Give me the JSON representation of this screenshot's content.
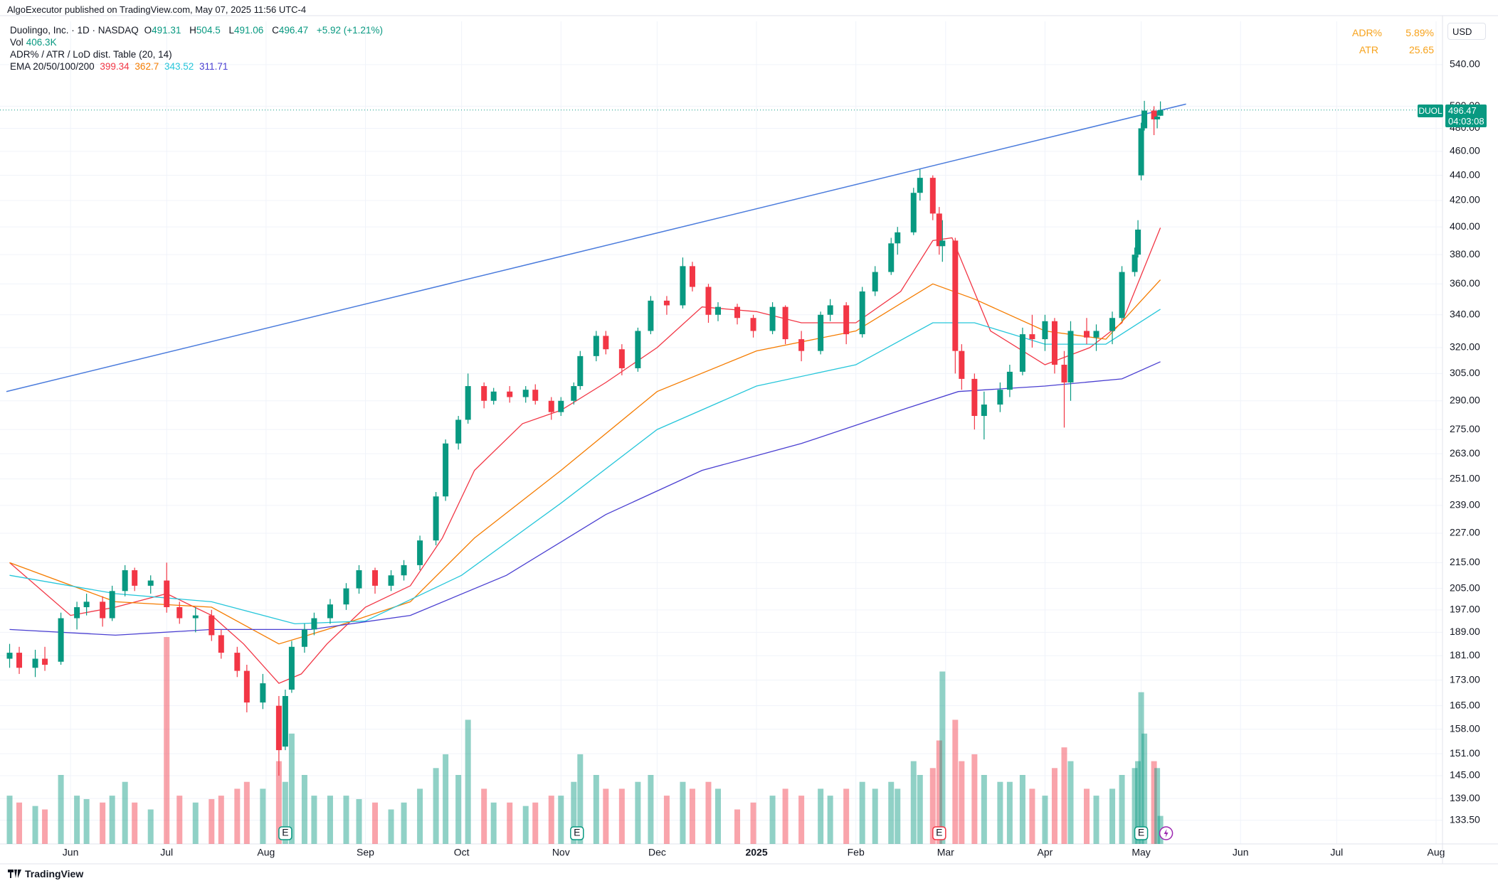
{
  "header": {
    "published": "AlgoExecutor published on TradingView.com, May 07, 2025 11:56 UTC-4",
    "symbol_line": "Duolingo, Inc. · 1D · NASDAQ",
    "ohlc_labels": [
      "O",
      "H",
      "L",
      "C"
    ],
    "change": "+5.92 (+1.21%)",
    "vol_label": "Vol",
    "vol_value": "406.3K",
    "table_label": "ADR% / ATR / LoD dist. Table (20, 14)",
    "ema_label": "EMA 20/50/100/200"
  },
  "adr_table": {
    "rows": [
      [
        "ADR%",
        "5.89%"
      ],
      [
        "ATR",
        "25.65"
      ]
    ]
  },
  "currency": "USD",
  "ticker": "DUOL",
  "countdown": "04:03:08",
  "footer": "TradingView",
  "chart_data": {
    "type": "candlestick",
    "log": true,
    "grid": true,
    "up_color": "#089981",
    "down_color": "#f23645",
    "xlim": [
      "2024-05-10",
      "2025-08-03"
    ],
    "xticks": [
      {
        "value": "2024-06-01",
        "label": "Jun"
      },
      {
        "value": "2024-07-01",
        "label": "Jul"
      },
      {
        "value": "2024-08-01",
        "label": "Aug"
      },
      {
        "value": "2024-09-01",
        "label": "Sep"
      },
      {
        "value": "2024-10-01",
        "label": "Oct"
      },
      {
        "value": "2024-11-01",
        "label": "Nov"
      },
      {
        "value": "2024-12-01",
        "label": "Dec"
      },
      {
        "value": "2025-01-01",
        "label": "2025"
      },
      {
        "value": "2025-02-01",
        "label": "Feb"
      },
      {
        "value": "2025-03-01",
        "label": "Mar"
      },
      {
        "value": "2025-04-01",
        "label": "Apr"
      },
      {
        "value": "2025-05-01",
        "label": "May"
      },
      {
        "value": "2025-06-01",
        "label": "Jun"
      },
      {
        "value": "2025-07-01",
        "label": "Jul"
      },
      {
        "value": "2025-08-01",
        "label": "Aug"
      }
    ],
    "ylim": [
      127.8,
      585
    ],
    "yticks": [
      {
        "value": 133.5,
        "label": "133.50"
      },
      {
        "value": 139,
        "label": "139.00"
      },
      {
        "value": 145,
        "label": "145.00"
      },
      {
        "value": 151,
        "label": "151.00"
      },
      {
        "value": 158,
        "label": "158.00"
      },
      {
        "value": 165,
        "label": "165.00"
      },
      {
        "value": 173,
        "label": "173.00"
      },
      {
        "value": 181,
        "label": "181.00"
      },
      {
        "value": 189,
        "label": "189.00"
      },
      {
        "value": 197,
        "label": "197.00"
      },
      {
        "value": 205,
        "label": "205.00"
      },
      {
        "value": 215,
        "label": "215.00"
      },
      {
        "value": 227,
        "label": "227.00"
      },
      {
        "value": 239,
        "label": "239.00"
      },
      {
        "value": 251,
        "label": "251.00"
      },
      {
        "value": 263,
        "label": "263.00"
      },
      {
        "value": 275,
        "label": "275.00"
      },
      {
        "value": 290,
        "label": "290.00"
      },
      {
        "value": 305,
        "label": "305.00"
      },
      {
        "value": 320,
        "label": "320.00"
      },
      {
        "value": 340,
        "label": "340.00"
      },
      {
        "value": 360,
        "label": "360.00"
      },
      {
        "value": 380,
        "label": "380.00"
      },
      {
        "value": 400,
        "label": "400.00"
      },
      {
        "value": 420,
        "label": "420.00"
      },
      {
        "value": 440,
        "label": "440.00"
      },
      {
        "value": 460,
        "label": "460.00"
      },
      {
        "value": 480,
        "label": "480.00"
      },
      {
        "value": 500,
        "label": "500.00"
      },
      {
        "value": 540,
        "label": "540.00"
      }
    ],
    "x": [
      "2024-05-13",
      "2024-05-16",
      "2024-05-21",
      "2024-05-24",
      "2024-05-29",
      "2024-06-03",
      "2024-06-06",
      "2024-06-11",
      "2024-06-14",
      "2024-06-18",
      "2024-06-21",
      "2024-06-26",
      "2024-07-01",
      "2024-07-05",
      "2024-07-10",
      "2024-07-15",
      "2024-07-18",
      "2024-07-23",
      "2024-07-26",
      "2024-07-31",
      "2024-08-05",
      "2024-08-07",
      "2024-08-09",
      "2024-08-13",
      "2024-08-16",
      "2024-08-21",
      "2024-08-26",
      "2024-08-30",
      "2024-09-04",
      "2024-09-09",
      "2024-09-13",
      "2024-09-18",
      "2024-09-23",
      "2024-09-26",
      "2024-09-30",
      "2024-10-03",
      "2024-10-08",
      "2024-10-11",
      "2024-10-16",
      "2024-10-21",
      "2024-10-24",
      "2024-10-29",
      "2024-11-01",
      "2024-11-05",
      "2024-11-07",
      "2024-11-12",
      "2024-11-15",
      "2024-11-20",
      "2024-11-25",
      "2024-11-29",
      "2024-12-04",
      "2024-12-09",
      "2024-12-12",
      "2024-12-17",
      "2024-12-20",
      "2024-12-26",
      "2024-12-31",
      "2025-01-06",
      "2025-01-10",
      "2025-01-15",
      "2025-01-21",
      "2025-01-24",
      "2025-01-29",
      "2025-02-03",
      "2025-02-07",
      "2025-02-12",
      "2025-02-14",
      "2025-02-19",
      "2025-02-21",
      "2025-02-25",
      "2025-02-27",
      "2025-02-28",
      "2025-03-04",
      "2025-03-06",
      "2025-03-10",
      "2025-03-13",
      "2025-03-18",
      "2025-03-21",
      "2025-03-25",
      "2025-03-28",
      "2025-04-01",
      "2025-04-04",
      "2025-04-07",
      "2025-04-09",
      "2025-04-14",
      "2025-04-17",
      "2025-04-22",
      "2025-04-25",
      "2025-04-29",
      "2025-04-30",
      "2025-05-01",
      "2025-05-02",
      "2025-05-05",
      "2025-05-06",
      "2025-05-07"
    ],
    "open": [
      180,
      182,
      177,
      180,
      179,
      194,
      198,
      200,
      194,
      204,
      212,
      206,
      208,
      198,
      194,
      195,
      188,
      182,
      176,
      166,
      165,
      153,
      170,
      184,
      190,
      194,
      199,
      205,
      212,
      206,
      210,
      214,
      224,
      243,
      268,
      280,
      298,
      290,
      295,
      292,
      296,
      290,
      284,
      290,
      298,
      315,
      327,
      319,
      308,
      330,
      349,
      346,
      372,
      358,
      340,
      345,
      338,
      330,
      345,
      325,
      318,
      340,
      346,
      328,
      355,
      368,
      388,
      396,
      426,
      438,
      410,
      386,
      390,
      318,
      302,
      282,
      288,
      296,
      306,
      328,
      325,
      336,
      310,
      300,
      330,
      326,
      330,
      338,
      368,
      380,
      440,
      480,
      496,
      488,
      491.31
    ],
    "high": [
      185,
      184,
      183,
      184,
      196,
      200,
      203,
      202,
      206,
      214,
      213,
      210,
      215,
      200,
      198,
      197,
      190,
      184,
      178,
      175,
      168,
      170,
      186,
      192,
      196,
      201,
      207,
      214,
      213,
      212,
      216,
      226,
      245,
      270,
      282,
      305,
      300,
      297,
      298,
      298,
      299,
      292,
      292,
      300,
      318,
      330,
      330,
      322,
      332,
      352,
      352,
      378,
      375,
      360,
      348,
      347,
      340,
      348,
      346,
      330,
      342,
      350,
      348,
      358,
      372,
      392,
      400,
      430,
      445,
      440,
      415,
      405,
      392,
      322,
      305,
      295,
      300,
      310,
      332,
      340,
      340,
      338,
      318,
      336,
      338,
      334,
      342,
      372,
      385,
      405,
      485,
      505,
      500,
      495,
      504.5
    ],
    "low": [
      177,
      175,
      174,
      176,
      178,
      190,
      195,
      191,
      193,
      202,
      204,
      203,
      196,
      192,
      189,
      186,
      180,
      174,
      163,
      164,
      145,
      152,
      169,
      182,
      188,
      192,
      197,
      203,
      203,
      204,
      208,
      212,
      222,
      241,
      265,
      278,
      286,
      288,
      289,
      289,
      288,
      280,
      282,
      288,
      296,
      312,
      316,
      304,
      306,
      328,
      340,
      344,
      355,
      335,
      336,
      334,
      326,
      328,
      322,
      312,
      316,
      336,
      322,
      326,
      352,
      366,
      380,
      394,
      420,
      405,
      380,
      375,
      305,
      296,
      275,
      270,
      284,
      292,
      304,
      320,
      318,
      305,
      276,
      290,
      322,
      318,
      322,
      336,
      365,
      378,
      436,
      478,
      474,
      480,
      491.06
    ],
    "close": [
      182,
      177,
      180,
      178,
      194,
      198,
      200,
      194,
      204,
      212,
      206,
      208,
      198,
      194,
      195,
      188,
      182,
      176,
      166,
      172,
      152,
      168,
      184,
      190,
      194,
      199,
      205,
      212,
      206,
      210,
      214,
      224,
      243,
      268,
      280,
      298,
      290,
      295,
      292,
      296,
      290,
      284,
      290,
      298,
      315,
      327,
      319,
      308,
      330,
      349,
      346,
      372,
      358,
      340,
      345,
      338,
      330,
      345,
      325,
      318,
      340,
      346,
      328,
      355,
      368,
      388,
      396,
      426,
      438,
      410,
      386,
      390,
      318,
      302,
      282,
      288,
      296,
      306,
      328,
      325,
      336,
      310,
      300,
      330,
      326,
      330,
      338,
      368,
      380,
      398,
      480,
      496,
      488,
      490.55,
      496.47
    ],
    "volume": [
      700000,
      600000,
      550000,
      500000,
      1000000,
      700000,
      650000,
      600000,
      700000,
      900000,
      600000,
      500000,
      3000000,
      700000,
      600000,
      650000,
      700000,
      800000,
      900000,
      800000,
      1200000,
      900000,
      1600000,
      1000000,
      700000,
      700000,
      700000,
      650000,
      600000,
      500000,
      600000,
      800000,
      1100000,
      1300000,
      1000000,
      1800000,
      800000,
      600000,
      600000,
      550000,
      600000,
      700000,
      700000,
      900000,
      1300000,
      1000000,
      800000,
      800000,
      900000,
      1000000,
      700000,
      900000,
      800000,
      900000,
      800000,
      500000,
      600000,
      700000,
      800000,
      700000,
      800000,
      700000,
      800000,
      900000,
      800000,
      900000,
      800000,
      1200000,
      1000000,
      1100000,
      1500000,
      2500000,
      1800000,
      1200000,
      1300000,
      1000000,
      900000,
      900000,
      1000000,
      800000,
      700000,
      1100000,
      1400000,
      1200000,
      800000,
      700000,
      800000,
      1000000,
      1100000,
      1200000,
      2200000,
      1600000,
      1200000,
      1100000,
      406300
    ],
    "emas": [
      {
        "color": "#f23645",
        "x": [
          "2024-05-13",
          "2024-06-01",
          "2024-06-15",
          "2024-07-01",
          "2024-07-15",
          "2024-07-25",
          "2024-08-05",
          "2024-08-12",
          "2024-08-20",
          "2024-09-01",
          "2024-09-15",
          "2024-09-25",
          "2024-10-05",
          "2024-10-20",
          "2024-11-01",
          "2024-11-15",
          "2024-12-01",
          "2024-12-15",
          "2025-01-01",
          "2025-01-15",
          "2025-02-01",
          "2025-02-15",
          "2025-02-25",
          "2025-03-03",
          "2025-03-15",
          "2025-04-01",
          "2025-04-15",
          "2025-04-25",
          "2025-05-07"
        ],
        "values": [
          215,
          195,
          198,
          203,
          195,
          185,
          172,
          175,
          185,
          198,
          206,
          225,
          255,
          278,
          285,
          300,
          320,
          345,
          342,
          335,
          335,
          355,
          390,
          392,
          330,
          310,
          320,
          335,
          399.34
        ]
      },
      {
        "color": "#f57c00",
        "x": [
          "2024-05-13",
          "2024-06-15",
          "2024-07-15",
          "2024-08-05",
          "2024-08-20",
          "2024-09-15",
          "2024-10-05",
          "2024-11-01",
          "2024-12-01",
          "2025-01-01",
          "2025-02-01",
          "2025-02-25",
          "2025-03-10",
          "2025-04-01",
          "2025-04-20",
          "2025-05-07"
        ],
        "values": [
          215,
          200,
          198,
          185,
          190,
          200,
          225,
          255,
          295,
          318,
          330,
          360,
          350,
          330,
          325,
          362.7
        ]
      },
      {
        "color": "#26c6da",
        "x": [
          "2024-05-13",
          "2024-06-15",
          "2024-07-15",
          "2024-08-10",
          "2024-09-01",
          "2024-10-01",
          "2024-11-01",
          "2024-12-01",
          "2025-01-01",
          "2025-02-01",
          "2025-02-25",
          "2025-03-10",
          "2025-04-01",
          "2025-04-20",
          "2025-05-07"
        ],
        "values": [
          210,
          203,
          200,
          192,
          193,
          210,
          240,
          275,
          298,
          310,
          335,
          335,
          322,
          322,
          343.52
        ]
      },
      {
        "color": "#4a3fd1",
        "x": [
          "2024-05-13",
          "2024-06-15",
          "2024-07-15",
          "2024-08-15",
          "2024-09-15",
          "2024-10-15",
          "2024-11-15",
          "2024-12-15",
          "2025-01-15",
          "2025-02-15",
          "2025-03-05",
          "2025-04-01",
          "2025-04-25",
          "2025-05-07"
        ],
        "values": [
          190,
          188,
          190,
          190,
          195,
          210,
          235,
          255,
          268,
          285,
          295,
          298,
          302,
          311.71
        ]
      }
    ],
    "trendline": {
      "color": "#4a7bdc",
      "x": [
        "2024-05-12",
        "2025-05-15"
      ],
      "values": [
        295,
        502
      ]
    },
    "events": [
      {
        "date": "2024-08-07",
        "label": "E",
        "color": "#089981"
      },
      {
        "date": "2024-11-06",
        "label": "E",
        "color": "#089981"
      },
      {
        "date": "2025-02-27",
        "label": "E",
        "color": "#f23645"
      },
      {
        "date": "2025-05-01",
        "label": "E",
        "color": "#089981"
      }
    ]
  }
}
